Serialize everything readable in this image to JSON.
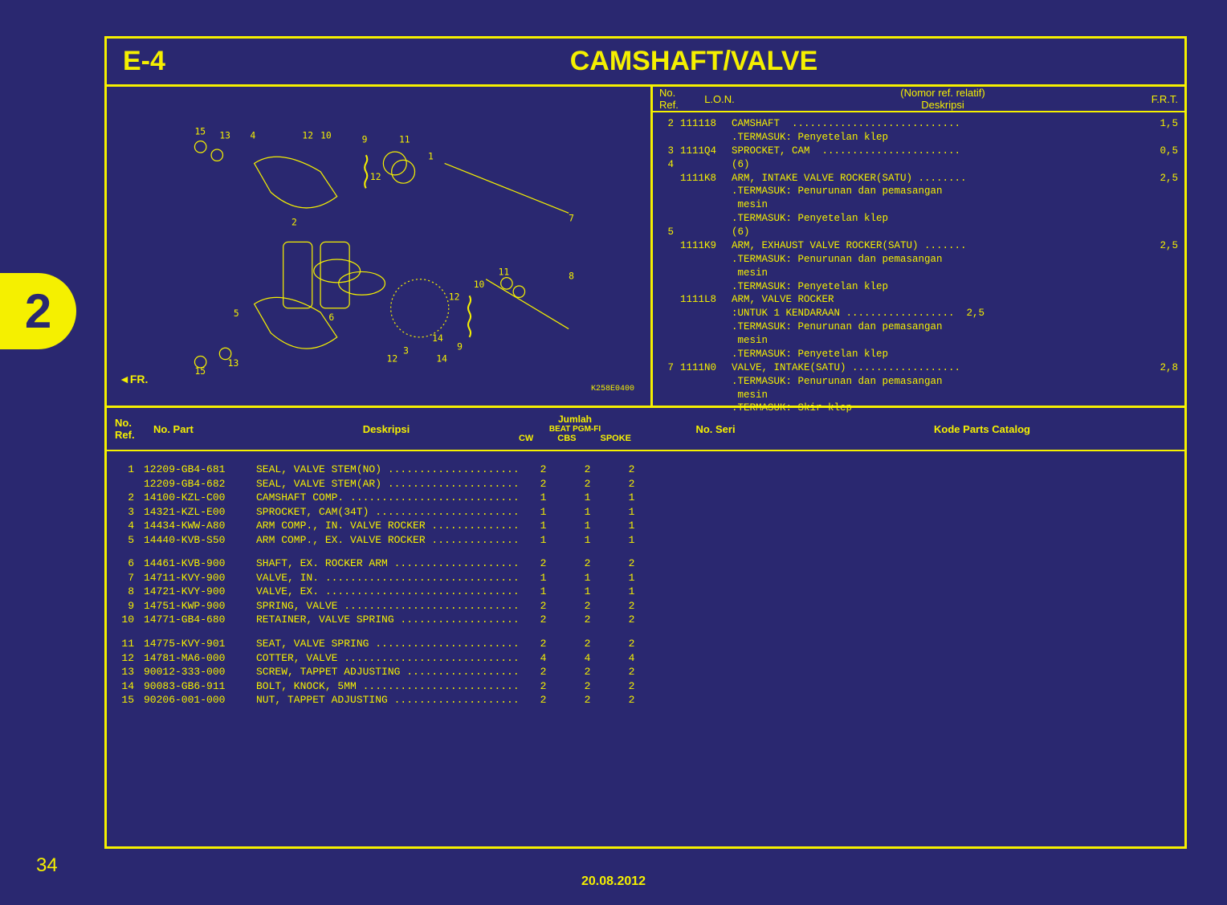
{
  "page": {
    "tab_number": "2",
    "page_number": "34",
    "date": "20.08.2012",
    "section_code": "E-4",
    "title": "CAMSHAFT/VALVE",
    "diagram_code": "K258E0400",
    "fr_label": "FR.",
    "bg_color": "#2a2870",
    "fg_color": "#f5f000"
  },
  "info_header": {
    "ref": "No.\nRef.",
    "lon": "L.O.N.",
    "nomor": "(Nomor ref. relatif)",
    "deskripsi": "Deskripsi",
    "frt": "F.R.T."
  },
  "info_rows": [
    {
      "ref": "2",
      "lon": "111118",
      "desc": "CAMSHAFT  ............................",
      "frt": "1,5",
      "subs": [
        ".TERMASUK: Penyetelan klep"
      ]
    },
    {
      "ref": "3",
      "lon": "1111Q4",
      "desc": "SPROCKET, CAM  .......................",
      "frt": "0,5",
      "subs": []
    },
    {
      "ref": "4",
      "lon": "",
      "desc": "(6)",
      "frt": "",
      "subs": []
    },
    {
      "ref": "",
      "lon": "1111K8",
      "desc": "ARM, INTAKE VALVE ROCKER(SATU) ........",
      "frt": "2,5",
      "subs": [
        ".TERMASUK: Penurunan dan pemasangan",
        " mesin",
        ".TERMASUK: Penyetelan klep"
      ]
    },
    {
      "ref": "5",
      "lon": "",
      "desc": "(6)",
      "frt": "",
      "subs": []
    },
    {
      "ref": "",
      "lon": "1111K9",
      "desc": "ARM, EXHAUST VALVE ROCKER(SATU) .......",
      "frt": "2,5",
      "subs": [
        ".TERMASUK: Penurunan dan pemasangan",
        " mesin",
        ".TERMASUK: Penyetelan klep"
      ]
    },
    {
      "ref": "",
      "lon": "1111L8",
      "desc": "ARM, VALVE ROCKER",
      "frt": "",
      "subs": [
        ":UNTUK 1 KENDARAAN ..................  2,5",
        ".TERMASUK: Penurunan dan pemasangan",
        " mesin",
        ".TERMASUK: Penyetelan klep"
      ]
    },
    {
      "ref": "7",
      "lon": "1111N0",
      "desc": "VALVE, INTAKE(SATU) ..................",
      "frt": "2,8",
      "subs": [
        ".TERMASUK: Penurunan dan pemasangan",
        " mesin",
        ".TERMASUK: Skir klep"
      ]
    }
  ],
  "lower_header": {
    "ref": "No.\nRef.",
    "part": "No. Part",
    "desc": "Deskripsi",
    "qty_top": "Jumlah",
    "qty_mid": "BEAT PGM-FI",
    "qty_cw": "CW",
    "qty_cbs": "CBS",
    "qty_spoke": "SPOKE",
    "seri": "No. Seri",
    "kode": "Kode Parts Catalog"
  },
  "parts": [
    [
      {
        "ref": "1",
        "part": "12209-GB4-681",
        "desc": "SEAL, VALVE STEM(NO) ......................",
        "cw": "2",
        "cbs": "2",
        "spoke": "2"
      },
      {
        "ref": "",
        "part": "12209-GB4-682",
        "desc": "SEAL, VALVE STEM(AR) ......................",
        "cw": "2",
        "cbs": "2",
        "spoke": "2"
      },
      {
        "ref": "2",
        "part": "14100-KZL-C00",
        "desc": "CAMSHAFT COMP. ............................",
        "cw": "1",
        "cbs": "1",
        "spoke": "1"
      },
      {
        "ref": "3",
        "part": "14321-KZL-E00",
        "desc": "SPROCKET, CAM(34T) ........................",
        "cw": "1",
        "cbs": "1",
        "spoke": "1"
      },
      {
        "ref": "4",
        "part": "14434-KWW-A80",
        "desc": "ARM COMP., IN. VALVE ROCKER ...............",
        "cw": "1",
        "cbs": "1",
        "spoke": "1"
      },
      {
        "ref": "5",
        "part": "14440-KVB-S50",
        "desc": "ARM COMP., EX. VALVE ROCKER ...............",
        "cw": "1",
        "cbs": "1",
        "spoke": "1"
      }
    ],
    [
      {
        "ref": "6",
        "part": "14461-KVB-900",
        "desc": "SHAFT, EX. ROCKER ARM .....................",
        "cw": "2",
        "cbs": "2",
        "spoke": "2"
      },
      {
        "ref": "7",
        "part": "14711-KVY-900",
        "desc": "VALVE, IN. ................................",
        "cw": "1",
        "cbs": "1",
        "spoke": "1"
      },
      {
        "ref": "8",
        "part": "14721-KVY-900",
        "desc": "VALVE, EX. ................................",
        "cw": "1",
        "cbs": "1",
        "spoke": "1"
      },
      {
        "ref": "9",
        "part": "14751-KWP-900",
        "desc": "SPRING, VALVE .............................",
        "cw": "2",
        "cbs": "2",
        "spoke": "2"
      },
      {
        "ref": "10",
        "part": "14771-GB4-680",
        "desc": "RETAINER, VALVE SPRING ....................",
        "cw": "2",
        "cbs": "2",
        "spoke": "2"
      }
    ],
    [
      {
        "ref": "11",
        "part": "14775-KVY-901",
        "desc": "SEAT, VALVE SPRING ........................",
        "cw": "2",
        "cbs": "2",
        "spoke": "2"
      },
      {
        "ref": "12",
        "part": "14781-MA6-000",
        "desc": "COTTER, VALVE .............................",
        "cw": "4",
        "cbs": "4",
        "spoke": "4"
      },
      {
        "ref": "13",
        "part": "90012-333-000",
        "desc": "SCREW, TAPPET ADJUSTING ...................",
        "cw": "2",
        "cbs": "2",
        "spoke": "2"
      },
      {
        "ref": "14",
        "part": "90083-GB6-911",
        "desc": "BOLT, KNOCK, 5MM ..........................",
        "cw": "2",
        "cbs": "2",
        "spoke": "2"
      },
      {
        "ref": "15",
        "part": "90206-001-000",
        "desc": "NUT, TAPPET ADJUSTING .....................",
        "cw": "2",
        "cbs": "2",
        "spoke": "2"
      }
    ]
  ],
  "diagram_callouts": [
    "1",
    "2",
    "3",
    "4",
    "5",
    "6",
    "7",
    "8",
    "9",
    "10",
    "11",
    "12",
    "13",
    "14",
    "15"
  ]
}
